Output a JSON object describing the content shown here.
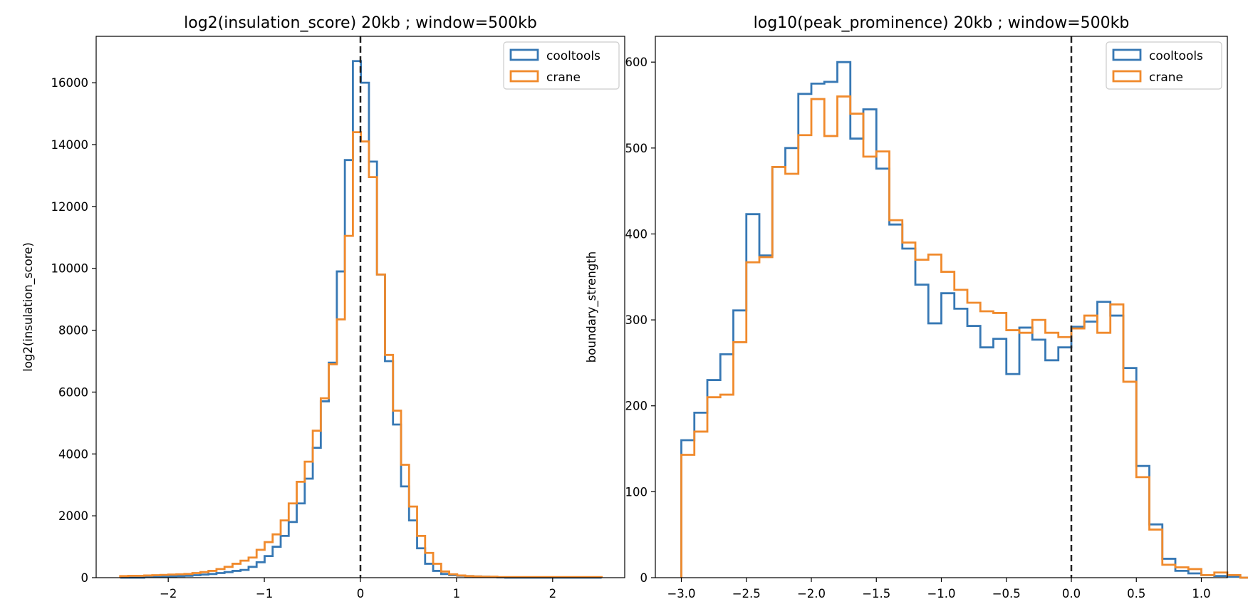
{
  "chart_data": [
    {
      "type": "histogram",
      "title": "log2(insulation_score) 20kb ; window=500kb",
      "xlabel": "",
      "ylabel": "log2(insulation_score)",
      "xlim": [
        -2.75,
        2.75
      ],
      "ylim": [
        0,
        17500
      ],
      "xticks": [
        -2,
        -1,
        0,
        1,
        2
      ],
      "yticks": [
        0,
        2000,
        4000,
        6000,
        8000,
        10000,
        12000,
        14000,
        16000
      ],
      "xtick_labels": [
        "−2",
        "−1",
        "0",
        "1",
        "2"
      ],
      "ytick_labels": [
        "0",
        "2000",
        "4000",
        "6000",
        "8000",
        "10000",
        "12000",
        "14000",
        "16000"
      ],
      "grid": false,
      "legend": "top-right",
      "vline": 0,
      "bin_start": -2.5,
      "bin_width": 0.0835,
      "series": [
        {
          "name": "cooltools",
          "color": "#3778b4",
          "values": [
            0,
            0,
            0,
            20,
            30,
            30,
            40,
            50,
            60,
            80,
            100,
            120,
            150,
            180,
            220,
            250,
            350,
            500,
            700,
            1000,
            1350,
            1800,
            2400,
            3200,
            4200,
            5700,
            6950,
            9900,
            13500,
            16700,
            16000,
            13450,
            9800,
            7000,
            4950,
            2950,
            1850,
            950,
            450,
            220,
            120,
            80,
            60,
            50,
            40,
            30,
            20,
            10,
            0,
            0,
            0,
            0,
            0,
            0,
            0,
            0,
            0,
            0,
            0,
            0
          ]
        },
        {
          "name": "crane",
          "color": "#f08a2c",
          "values": [
            50,
            60,
            60,
            70,
            80,
            90,
            100,
            110,
            120,
            150,
            180,
            220,
            280,
            350,
            450,
            550,
            650,
            900,
            1150,
            1400,
            1850,
            2400,
            3100,
            3750,
            4750,
            5800,
            6900,
            8350,
            11050,
            14400,
            14100,
            12950,
            9800,
            7200,
            5400,
            3650,
            2300,
            1350,
            800,
            450,
            200,
            110,
            70,
            50,
            40,
            30,
            30,
            20,
            20,
            20,
            20,
            20,
            20,
            20,
            20,
            20,
            20,
            20,
            20,
            20
          ]
        }
      ]
    },
    {
      "type": "histogram",
      "title": "log10(peak_prominence) 20kb ; window=500kb",
      "xlabel": "",
      "ylabel": "boundary_strength",
      "xlim": [
        -3.2,
        1.2
      ],
      "ylim": [
        0,
        630
      ],
      "xticks": [
        -3.0,
        -2.5,
        -2.0,
        -1.5,
        -1.0,
        -0.5,
        0.0,
        0.5,
        1.0
      ],
      "yticks": [
        0,
        100,
        200,
        300,
        400,
        500,
        600
      ],
      "xtick_labels": [
        "−3.0",
        "−2.5",
        "−2.0",
        "−1.5",
        "−1.0",
        "−0.5",
        "0.0",
        "0.5",
        "1.0"
      ],
      "ytick_labels": [
        "0",
        "100",
        "200",
        "300",
        "400",
        "500",
        "600"
      ],
      "grid": false,
      "legend": "top-right",
      "vline": 0,
      "bin_start": -3.0,
      "bin_width": 0.1,
      "series": [
        {
          "name": "cooltools",
          "color": "#3778b4",
          "values": [
            160,
            192,
            230,
            260,
            311,
            423,
            375,
            478,
            500,
            563,
            575,
            577,
            600,
            511,
            545,
            476,
            411,
            383,
            341,
            296,
            331,
            313,
            293,
            268,
            278,
            237,
            291,
            277,
            253,
            268,
            292,
            298,
            321,
            305,
            244,
            130,
            62,
            22,
            8,
            5,
            3,
            2,
            1,
            0,
            0
          ]
        },
        {
          "name": "crane",
          "color": "#f08a2c",
          "values": [
            143,
            170,
            210,
            213,
            274,
            367,
            373,
            478,
            470,
            515,
            557,
            514,
            560,
            540,
            490,
            496,
            416,
            390,
            370,
            376,
            356,
            335,
            320,
            310,
            308,
            288,
            285,
            300,
            285,
            280,
            290,
            305,
            285,
            318,
            228,
            117,
            56,
            15,
            12,
            10,
            3,
            6,
            3,
            0,
            0
          ]
        }
      ]
    }
  ]
}
